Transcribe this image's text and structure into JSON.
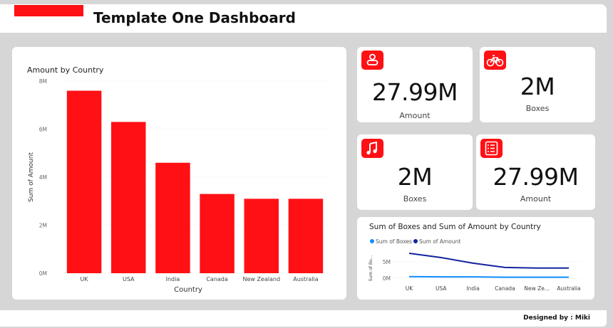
{
  "header": {
    "title": "Template One Dashboard"
  },
  "bar_chart": {
    "title": "Amount by Country",
    "ylabel": "Sum of Amount",
    "xlabel": "Country",
    "yticks": [
      "0M",
      "2M",
      "4M",
      "6M",
      "8M"
    ]
  },
  "kpis": [
    {
      "value": "27.99M",
      "label": "Amount",
      "icon": "person-icon"
    },
    {
      "value": "2M",
      "label": "Boxes",
      "icon": "bicycle-icon"
    },
    {
      "value": "2M",
      "label": "Boxes",
      "icon": "music-note-icon"
    },
    {
      "value": "27.99M",
      "label": "Amount",
      "icon": "list-icon"
    }
  ],
  "line_chart": {
    "title": "Sum of Boxes and Sum of Amount by Country",
    "ylabel": "Sum of Bo...",
    "yticks": [
      "0M",
      "5M"
    ],
    "xticks": [
      "UK",
      "USA",
      "India",
      "Canada",
      "New Ze...",
      "Australia"
    ]
  },
  "footer": {
    "credit": "Designed by : Miki"
  },
  "colors": {
    "accent": "#ff1015",
    "boxes": "#118dff",
    "amount": "#12239e"
  },
  "chart_data": [
    {
      "type": "bar",
      "title": "Amount by Country",
      "categories": [
        "UK",
        "USA",
        "India",
        "Canada",
        "New Zealand",
        "Australia"
      ],
      "series": [
        {
          "values": [
            7.6,
            6.3,
            4.6,
            3.3,
            3.1,
            3.1
          ]
        }
      ],
      "xlabel": "Country",
      "ylabel": "Sum of Amount",
      "ylim": [
        0,
        8
      ],
      "units": "M",
      "grid": true
    },
    {
      "type": "line",
      "title": "Sum of Boxes and Sum of Amount by Country",
      "categories": [
        "UK",
        "USA",
        "India",
        "Canada",
        "New Zealand",
        "Australia"
      ],
      "series": [
        {
          "name": "Sum of Boxes",
          "values": [
            0.5,
            0.4,
            0.4,
            0.3,
            0.3,
            0.3
          ]
        },
        {
          "name": "Sum of Amount",
          "values": [
            7.6,
            6.3,
            4.6,
            3.3,
            3.1,
            3.1
          ]
        }
      ],
      "ylim": [
        0,
        8
      ],
      "units": "M",
      "legend": "top-left",
      "grid": true
    }
  ]
}
